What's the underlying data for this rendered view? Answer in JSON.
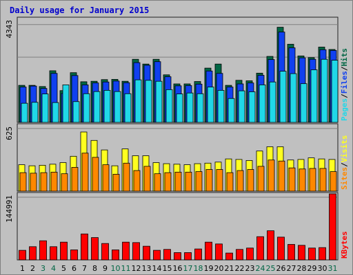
{
  "chart_data": {
    "type": "bar",
    "title": "Daily usage for January 2015",
    "categories": [
      "1",
      "2",
      "3",
      "4",
      "5",
      "6",
      "7",
      "8",
      "9",
      "10",
      "11",
      "12",
      "13",
      "14",
      "15",
      "16",
      "17",
      "18",
      "19",
      "20",
      "21",
      "22",
      "23",
      "24",
      "25",
      "26",
      "27",
      "28",
      "29",
      "30",
      "31"
    ],
    "weekend_days": [
      "3",
      "4",
      "10",
      "11",
      "17",
      "18",
      "24",
      "25",
      "31"
    ],
    "x_tick_colors": {
      "weekday": "#000000",
      "weekend": "#006644"
    },
    "panels": [
      {
        "name": "pages-files-hits",
        "ymax_label": "4343",
        "ylim": [
          0,
          4343
        ],
        "legend": [
          "Pages",
          "Files",
          "Hits"
        ],
        "series": [
          {
            "name": "Hits",
            "color": "#006644",
            "values": [
              1550,
              1550,
              1500,
              2160,
              1330,
              2080,
              1700,
              1720,
              1790,
              1800,
              1720,
              2640,
              2440,
              2640,
              1990,
              1610,
              1610,
              1710,
              2270,
              2440,
              1550,
              1760,
              1740,
              2060,
              2760,
              3980,
              3270,
              2780,
              2710,
              3150,
              3050
            ]
          },
          {
            "name": "Files",
            "color": "#1040F0",
            "values": [
              1480,
              1520,
              1420,
              2050,
              1210,
              1960,
              1570,
              1650,
              1690,
              1730,
              1660,
              2500,
              2390,
              2540,
              1910,
              1530,
              1540,
              1600,
              2150,
              2050,
              1480,
              1610,
              1650,
              1970,
              2630,
              3780,
              3120,
              2700,
              2640,
              3040,
              3010
            ]
          },
          {
            "name": "Pages",
            "color": "#20D8E8",
            "values": [
              800,
              840,
              1190,
              830,
              1570,
              870,
              1200,
              1290,
              1340,
              1290,
              1200,
              1780,
              1760,
              1720,
              1370,
              1190,
              1230,
              1200,
              1480,
              1340,
              1000,
              1320,
              1280,
              1570,
              1690,
              2140,
              2040,
              1620,
              2200,
              2640,
              2600
            ]
          }
        ]
      },
      {
        "name": "visits-sites",
        "ymax_label": "625",
        "ylim": [
          0,
          625
        ],
        "legend": [
          "Sites",
          "Visits"
        ],
        "series": [
          {
            "name": "Visits",
            "color": "#FFFF20",
            "values": [
              250,
              240,
              245,
              255,
              270,
              330,
              560,
              480,
              390,
              240,
              400,
              335,
              335,
              270,
              260,
              255,
              250,
              260,
              265,
              275,
              305,
              300,
              290,
              380,
              420,
              420,
              295,
              300,
              315,
              305,
              300
            ]
          },
          {
            "name": "Sites",
            "color": "#FF8800",
            "values": [
              175,
              170,
              175,
              180,
              165,
              225,
              360,
              320,
              250,
              160,
              265,
              195,
              235,
              165,
              175,
              180,
              180,
              185,
              205,
              205,
              175,
              195,
              205,
              235,
              295,
              285,
              220,
              210,
              215,
              215,
              185
            ]
          }
        ]
      },
      {
        "name": "kbytes",
        "ymax_label": "144991",
        "ylim": [
          0,
          144991
        ],
        "legend": [
          "KBytes"
        ],
        "series": [
          {
            "name": "KBytes",
            "color": "#FF0000",
            "values": [
              21000,
              29000,
              42000,
              29000,
              39000,
              22000,
              57000,
              49000,
              36000,
              22000,
              39000,
              38000,
              30000,
              21000,
              23000,
              16000,
              16000,
              24000,
              39000,
              35000,
              15000,
              23000,
              26000,
              51000,
              64000,
              50000,
              34000,
              32000,
              26000,
              27000,
              144991
            ]
          }
        ]
      }
    ]
  }
}
